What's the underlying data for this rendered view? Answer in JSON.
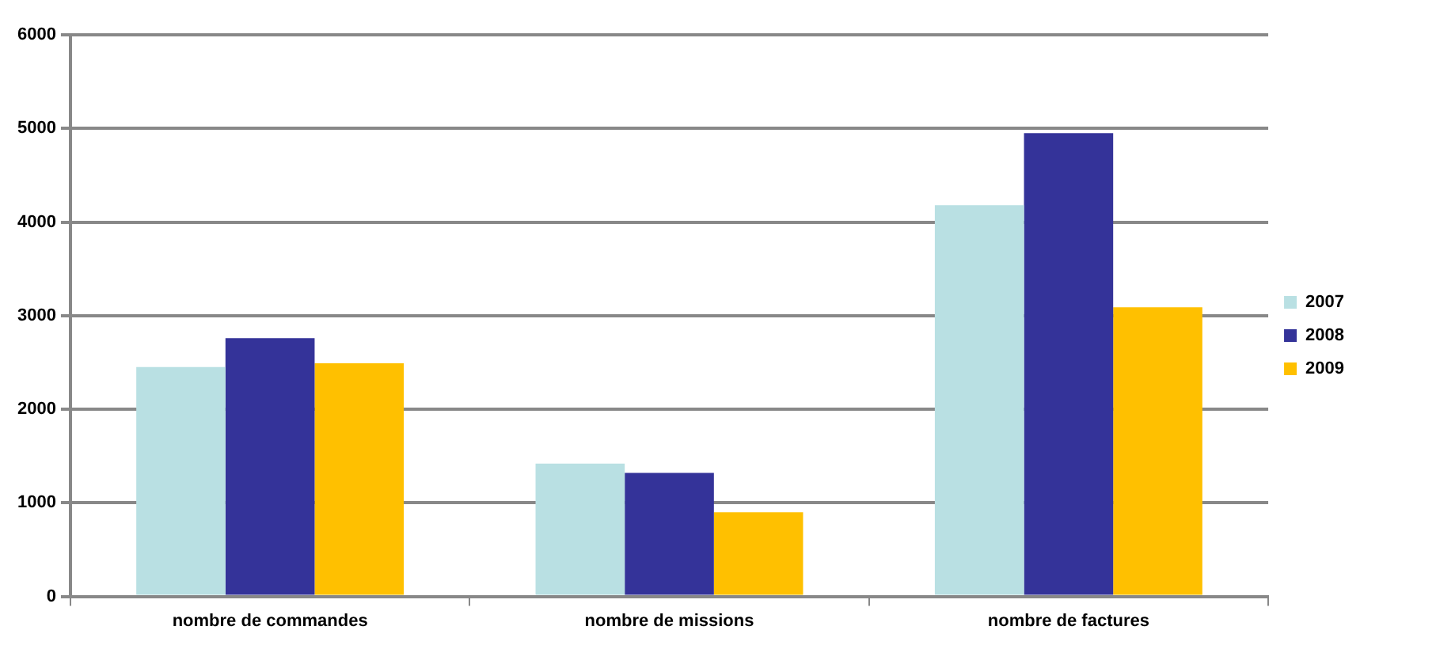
{
  "chart_data": {
    "type": "bar",
    "categories": [
      "nombre de commandes",
      "nombre de missions",
      "nombre de factures"
    ],
    "series": [
      {
        "name": "2007",
        "color": "#b9e0e3",
        "values": [
          2450,
          1420,
          4180
        ]
      },
      {
        "name": "2008",
        "color": "#343399",
        "values": [
          2760,
          1320,
          4950
        ]
      },
      {
        "name": "2009",
        "color": "#ffc000",
        "values": [
          2490,
          900,
          3090
        ]
      }
    ],
    "ylim": [
      0,
      6000
    ],
    "yticks": [
      0,
      1000,
      2000,
      3000,
      4000,
      5000,
      6000
    ],
    "grid": "y",
    "legend": "right"
  }
}
